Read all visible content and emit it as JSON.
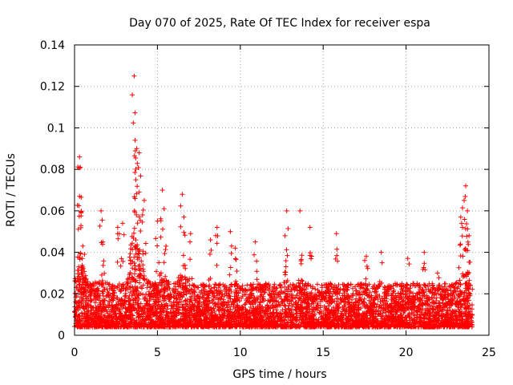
{
  "chart_data": {
    "type": "scatter",
    "title": "Day 070 of 2025, Rate Of TEC Index for receiver espa",
    "xlabel": "GPS time / hours",
    "ylabel": "ROTI / TECUs",
    "xlim": [
      0,
      25
    ],
    "ylim": [
      0,
      0.14
    ],
    "x_ticks": [
      0,
      5,
      10,
      15,
      20,
      25
    ],
    "x_tick_labels": [
      "0",
      "5",
      "10",
      "15",
      "20",
      "25"
    ],
    "y_ticks": [
      0,
      0.02,
      0.04,
      0.06,
      0.08,
      0.1,
      0.12,
      0.14
    ],
    "y_tick_labels": [
      "0",
      "0.02",
      "0.04",
      "0.06",
      "0.08",
      "0.1",
      "0.12",
      "0.14"
    ],
    "grid": true,
    "marker": "+",
    "series": [
      {
        "name": "ROTI",
        "color": "#ff0000",
        "baseline_range": [
          0.004,
          0.025
        ],
        "note": "Dense cloud of points every few minutes across 0-24 h, mostly 0.005-0.025 TECU, with spikes listed in peaks",
        "peaks": [
          {
            "x": 0.3,
            "y": 0.086
          },
          {
            "x": 0.35,
            "y": 0.081
          },
          {
            "x": 0.3,
            "y": 0.067
          },
          {
            "x": 0.4,
            "y": 0.059
          },
          {
            "x": 0.5,
            "y": 0.043
          },
          {
            "x": 1.6,
            "y": 0.06
          },
          {
            "x": 1.7,
            "y": 0.045
          },
          {
            "x": 2.6,
            "y": 0.052
          },
          {
            "x": 2.9,
            "y": 0.054
          },
          {
            "x": 3.6,
            "y": 0.125
          },
          {
            "x": 3.65,
            "y": 0.094
          },
          {
            "x": 3.75,
            "y": 0.09
          },
          {
            "x": 3.9,
            "y": 0.088
          },
          {
            "x": 3.7,
            "y": 0.075
          },
          {
            "x": 3.9,
            "y": 0.069
          },
          {
            "x": 4.2,
            "y": 0.065
          },
          {
            "x": 4.1,
            "y": 0.058
          },
          {
            "x": 5.3,
            "y": 0.07
          },
          {
            "x": 5.4,
            "y": 0.061
          },
          {
            "x": 5.0,
            "y": 0.055
          },
          {
            "x": 6.5,
            "y": 0.068
          },
          {
            "x": 6.6,
            "y": 0.057
          },
          {
            "x": 7.0,
            "y": 0.049
          },
          {
            "x": 8.2,
            "y": 0.046
          },
          {
            "x": 8.6,
            "y": 0.052
          },
          {
            "x": 9.4,
            "y": 0.05
          },
          {
            "x": 9.7,
            "y": 0.042
          },
          {
            "x": 10.9,
            "y": 0.045
          },
          {
            "x": 12.8,
            "y": 0.06
          },
          {
            "x": 12.7,
            "y": 0.048
          },
          {
            "x": 13.6,
            "y": 0.06
          },
          {
            "x": 14.2,
            "y": 0.052
          },
          {
            "x": 15.8,
            "y": 0.049
          },
          {
            "x": 17.6,
            "y": 0.038
          },
          {
            "x": 18.5,
            "y": 0.04
          },
          {
            "x": 20.1,
            "y": 0.037
          },
          {
            "x": 21.1,
            "y": 0.04
          },
          {
            "x": 21.9,
            "y": 0.03
          },
          {
            "x": 23.3,
            "y": 0.057
          },
          {
            "x": 23.5,
            "y": 0.065
          },
          {
            "x": 23.6,
            "y": 0.072
          },
          {
            "x": 23.4,
            "y": 0.052
          },
          {
            "x": 23.8,
            "y": 0.048
          },
          {
            "x": 23.7,
            "y": 0.06
          }
        ]
      }
    ]
  }
}
